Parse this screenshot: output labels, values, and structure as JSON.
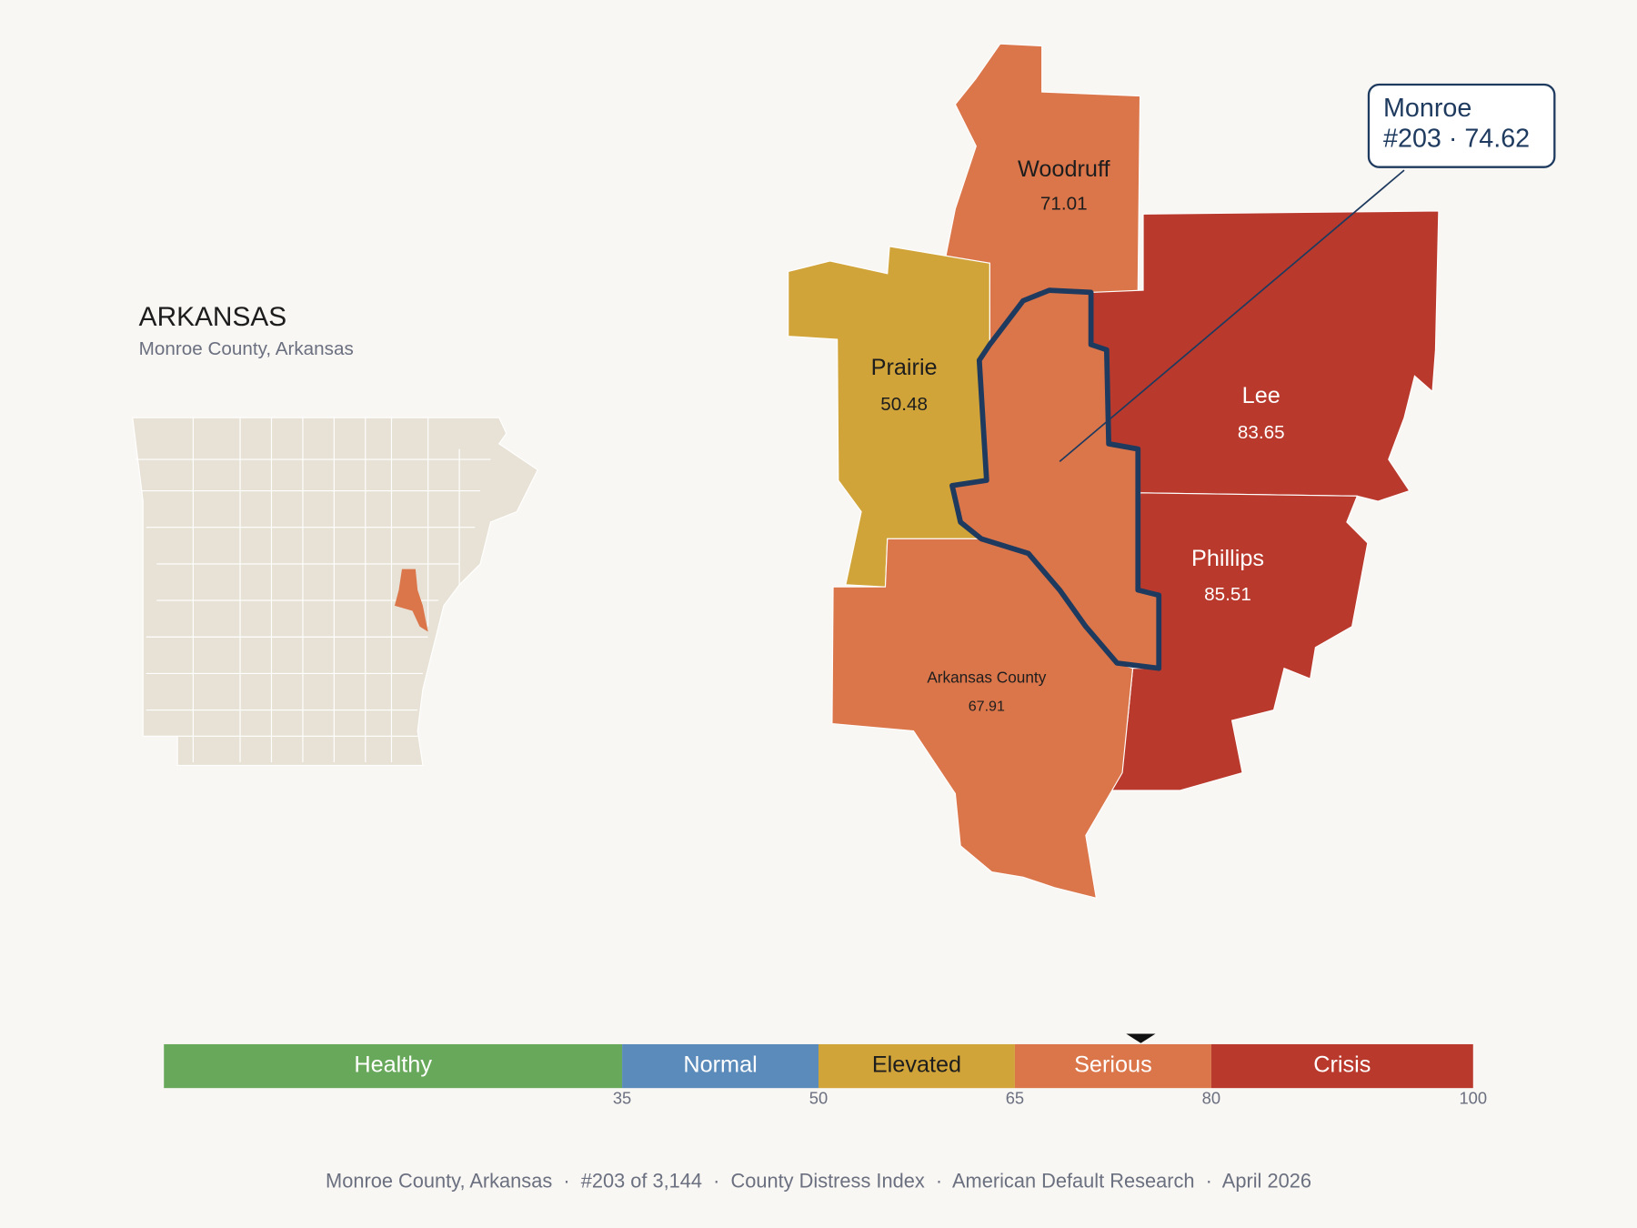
{
  "header": {
    "title": "ARKANSAS",
    "subtitle": "Monroe County, Arkansas"
  },
  "selected": {
    "name": "Monroe",
    "detail": "#203 · 74.62",
    "score": 74.62,
    "color": "#db764b"
  },
  "counties": [
    {
      "name": "Woodruff",
      "score": 71.01,
      "color": "#db764b",
      "text_color": "#1d1d1d"
    },
    {
      "name": "Prairie",
      "score": 50.48,
      "color": "#d1a43a",
      "text_color": "#1d1d1d"
    },
    {
      "name": "Lee",
      "score": 83.65,
      "color": "#b93a2d",
      "text_color": "#ffffff"
    },
    {
      "name": "Phillips",
      "score": 85.51,
      "color": "#b93a2d",
      "text_color": "#ffffff"
    },
    {
      "name": "Arkansas County",
      "score": 67.91,
      "color": "#db764b",
      "text_color": "#1d1d1d"
    }
  ],
  "scale": {
    "range": [
      0,
      100
    ],
    "ticks": [
      35,
      50,
      65,
      80,
      100
    ],
    "segments": [
      {
        "label": "Healthy",
        "color": "#67a85a",
        "text_color": "#ffffff"
      },
      {
        "label": "Normal",
        "color": "#5b8bbb",
        "text_color": "#ffffff"
      },
      {
        "label": "Elevated",
        "color": "#d1a43a",
        "text_color": "#1d1d1d"
      },
      {
        "label": "Serious",
        "color": "#db764b",
        "text_color": "#ffffff"
      },
      {
        "label": "Crisis",
        "color": "#b93a2d",
        "text_color": "#ffffff"
      }
    ]
  },
  "footer": "Monroe County, Arkansas  ·  #203 of 3,144  ·  County Distress Index  ·  American Default Research  ·  April 2026"
}
